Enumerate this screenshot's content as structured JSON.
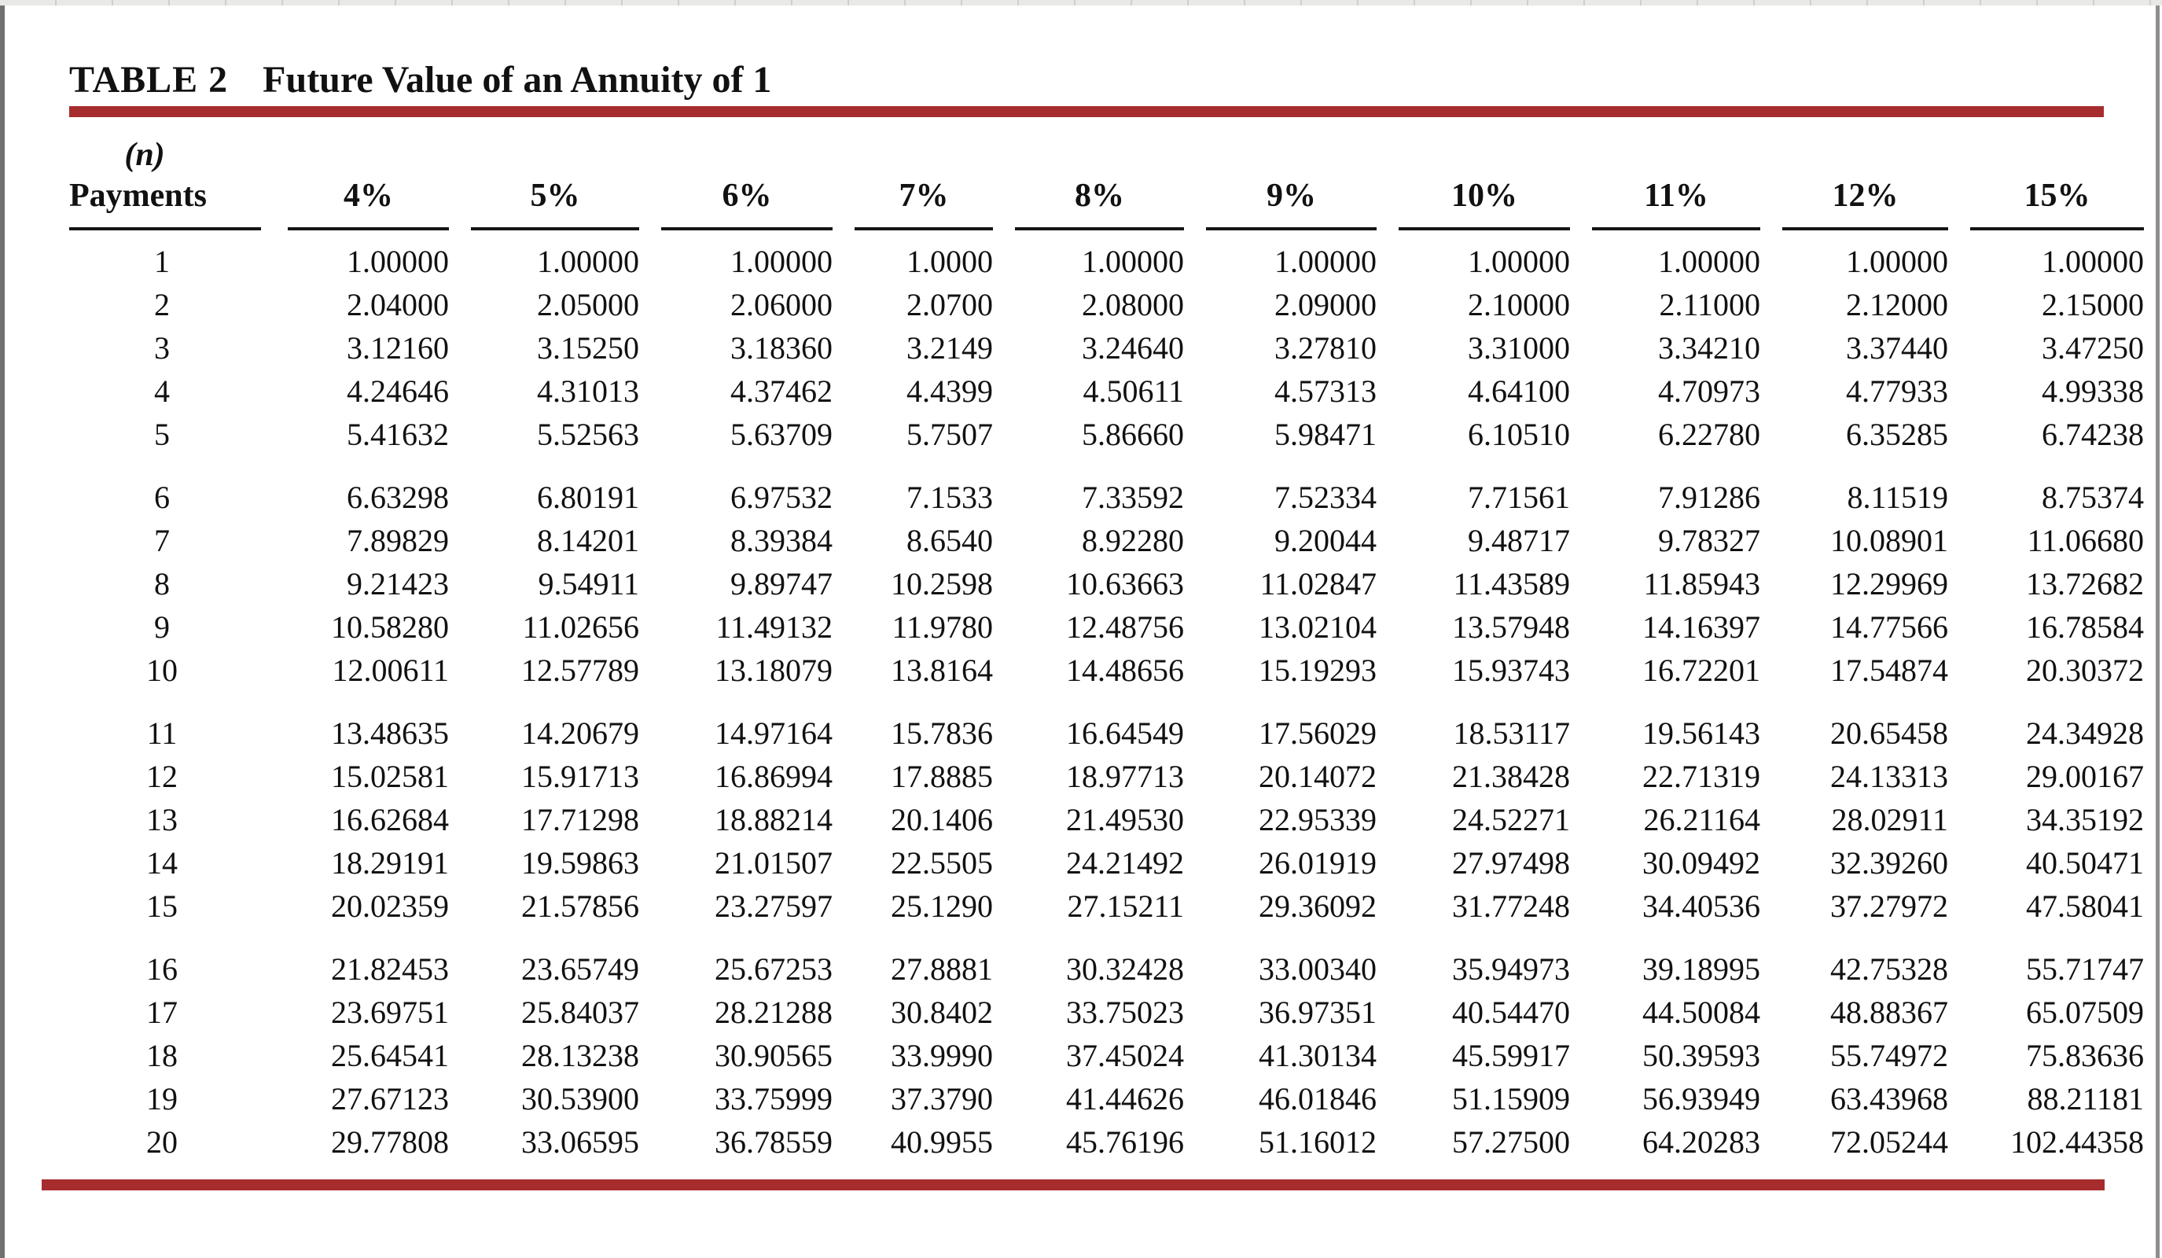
{
  "page": {
    "title_label": "TABLE 2",
    "title": "Future Value of an Annuity of 1"
  },
  "table": {
    "n_label": "(n)",
    "payments_label": "Payments",
    "columns": [
      "4%",
      "5%",
      "6%",
      "7%",
      "8%",
      "9%",
      "10%",
      "11%",
      "12%",
      "15%"
    ],
    "rows": [
      {
        "n": "1",
        "values": [
          "1.00000",
          "1.00000",
          "1.00000",
          "1.0000",
          "1.00000",
          "1.00000",
          "1.00000",
          "1.00000",
          "1.00000",
          "1.00000"
        ]
      },
      {
        "n": "2",
        "values": [
          "2.04000",
          "2.05000",
          "2.06000",
          "2.0700",
          "2.08000",
          "2.09000",
          "2.10000",
          "2.11000",
          "2.12000",
          "2.15000"
        ]
      },
      {
        "n": "3",
        "values": [
          "3.12160",
          "3.15250",
          "3.18360",
          "3.2149",
          "3.24640",
          "3.27810",
          "3.31000",
          "3.34210",
          "3.37440",
          "3.47250"
        ]
      },
      {
        "n": "4",
        "values": [
          "4.24646",
          "4.31013",
          "4.37462",
          "4.4399",
          "4.50611",
          "4.57313",
          "4.64100",
          "4.70973",
          "4.77933",
          "4.99338"
        ]
      },
      {
        "n": "5",
        "values": [
          "5.41632",
          "5.52563",
          "5.63709",
          "5.7507",
          "5.86660",
          "5.98471",
          "6.10510",
          "6.22780",
          "6.35285",
          "6.74238"
        ]
      },
      {
        "n": "6",
        "values": [
          "6.63298",
          "6.80191",
          "6.97532",
          "7.1533",
          "7.33592",
          "7.52334",
          "7.71561",
          "7.91286",
          "8.11519",
          "8.75374"
        ]
      },
      {
        "n": "7",
        "values": [
          "7.89829",
          "8.14201",
          "8.39384",
          "8.6540",
          "8.92280",
          "9.20044",
          "9.48717",
          "9.78327",
          "10.08901",
          "11.06680"
        ]
      },
      {
        "n": "8",
        "values": [
          "9.21423",
          "9.54911",
          "9.89747",
          "10.2598",
          "10.63663",
          "11.02847",
          "11.43589",
          "11.85943",
          "12.29969",
          "13.72682"
        ]
      },
      {
        "n": "9",
        "values": [
          "10.58280",
          "11.02656",
          "11.49132",
          "11.9780",
          "12.48756",
          "13.02104",
          "13.57948",
          "14.16397",
          "14.77566",
          "16.78584"
        ]
      },
      {
        "n": "10",
        "values": [
          "12.00611",
          "12.57789",
          "13.18079",
          "13.8164",
          "14.48656",
          "15.19293",
          "15.93743",
          "16.72201",
          "17.54874",
          "20.30372"
        ]
      },
      {
        "n": "11",
        "values": [
          "13.48635",
          "14.20679",
          "14.97164",
          "15.7836",
          "16.64549",
          "17.56029",
          "18.53117",
          "19.56143",
          "20.65458",
          "24.34928"
        ]
      },
      {
        "n": "12",
        "values": [
          "15.02581",
          "15.91713",
          "16.86994",
          "17.8885",
          "18.97713",
          "20.14072",
          "21.38428",
          "22.71319",
          "24.13313",
          "29.00167"
        ]
      },
      {
        "n": "13",
        "values": [
          "16.62684",
          "17.71298",
          "18.88214",
          "20.1406",
          "21.49530",
          "22.95339",
          "24.52271",
          "26.21164",
          "28.02911",
          "34.35192"
        ]
      },
      {
        "n": "14",
        "values": [
          "18.29191",
          "19.59863",
          "21.01507",
          "22.5505",
          "24.21492",
          "26.01919",
          "27.97498",
          "30.09492",
          "32.39260",
          "40.50471"
        ]
      },
      {
        "n": "15",
        "values": [
          "20.02359",
          "21.57856",
          "23.27597",
          "25.1290",
          "27.15211",
          "29.36092",
          "31.77248",
          "34.40536",
          "37.27972",
          "47.58041"
        ]
      },
      {
        "n": "16",
        "values": [
          "21.82453",
          "23.65749",
          "25.67253",
          "27.8881",
          "30.32428",
          "33.00340",
          "35.94973",
          "39.18995",
          "42.75328",
          "55.71747"
        ]
      },
      {
        "n": "17",
        "values": [
          "23.69751",
          "25.84037",
          "28.21288",
          "30.8402",
          "33.75023",
          "36.97351",
          "40.54470",
          "44.50084",
          "48.88367",
          "65.07509"
        ]
      },
      {
        "n": "18",
        "values": [
          "25.64541",
          "28.13238",
          "30.90565",
          "33.9990",
          "37.45024",
          "41.30134",
          "45.59917",
          "50.39593",
          "55.74972",
          "75.83636"
        ]
      },
      {
        "n": "19",
        "values": [
          "27.67123",
          "30.53900",
          "33.75999",
          "37.3790",
          "41.44626",
          "46.01846",
          "51.15909",
          "56.93949",
          "63.43968",
          "88.21181"
        ]
      },
      {
        "n": "20",
        "values": [
          "29.77808",
          "33.06595",
          "36.78559",
          "40.9955",
          "45.76196",
          "51.16012",
          "57.27500",
          "64.20283",
          "72.05244",
          "102.44358"
        ]
      }
    ]
  },
  "colors": {
    "accent_red": "#A62C2E",
    "text": "#111111",
    "top_strip": "#E9E9E7",
    "edge_gray": "#717171"
  }
}
